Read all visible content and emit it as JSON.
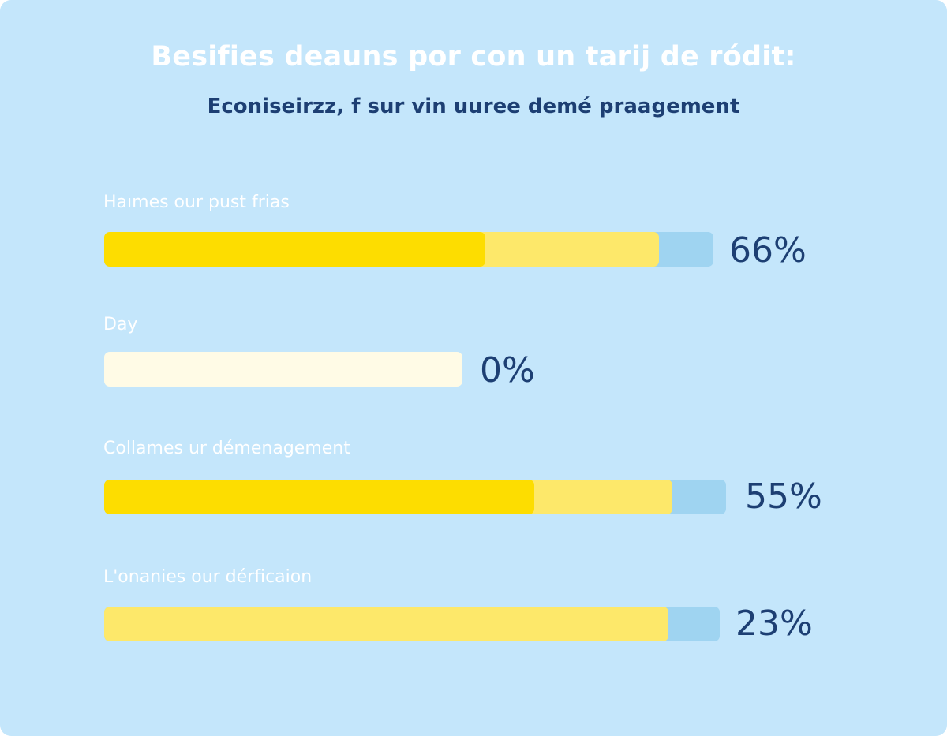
{
  "colors": {
    "background": "#c4e6fb",
    "title": "#ffffff",
    "subtitle": "#1d3f73",
    "label": "#ffffff",
    "value": "#1d3f73",
    "bar_track": "#9fd4f1",
    "bar_light": "#fde86a",
    "bar_main": "#fddd00",
    "bar_empty": "#fffbe6"
  },
  "chart_data": {
    "type": "bar",
    "orientation": "horizontal",
    "title": "Besifies deauns por con un tarij de ródit:",
    "subtitle": "Econiseirzz, f sur vin uuree demé praagement",
    "categories": [
      "Haımes our pust frias",
      "Day",
      "Collames ur démenagement",
      "L'onanies our dérficaion"
    ],
    "values": [
      66,
      0,
      55,
      23
    ],
    "value_labels": [
      "66%",
      "0%",
      "55%",
      "23%"
    ],
    "grid": false,
    "legend": "none"
  }
}
